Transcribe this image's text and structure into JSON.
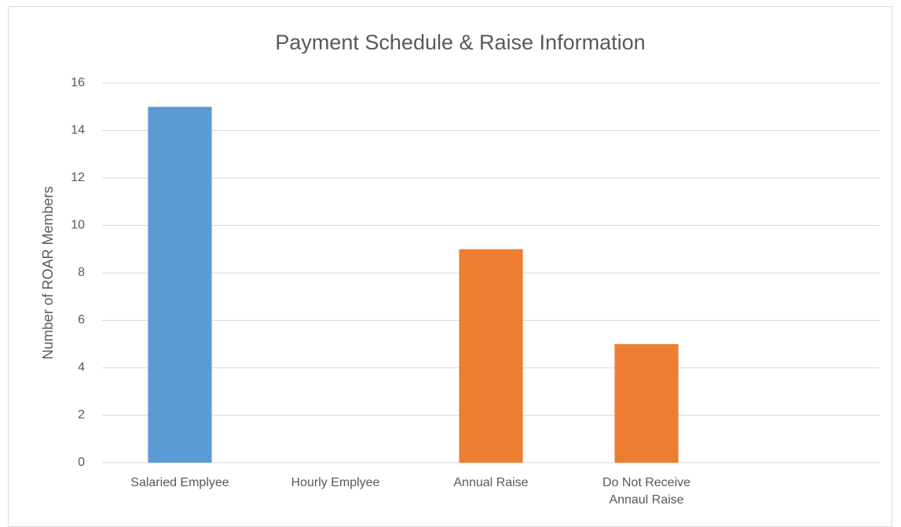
{
  "chart_data": {
    "type": "bar",
    "title": "Payment Schedule & Raise Information",
    "y_label": "Number of ROAR Members",
    "categories": [
      "Salaried Emplyee",
      "Hourly Emplyee",
      "Annual Raise",
      "Do Not Receive Annaul Raise",
      null
    ],
    "values": [
      15,
      0,
      9,
      5,
      null
    ],
    "colors": [
      "#5b9bd5",
      null,
      "#ed7d31",
      "#ed7d31",
      null
    ],
    "ylim": [
      0,
      16
    ],
    "yticks": [
      0,
      2,
      4,
      6,
      8,
      10,
      12,
      14,
      16
    ],
    "grid": true
  }
}
